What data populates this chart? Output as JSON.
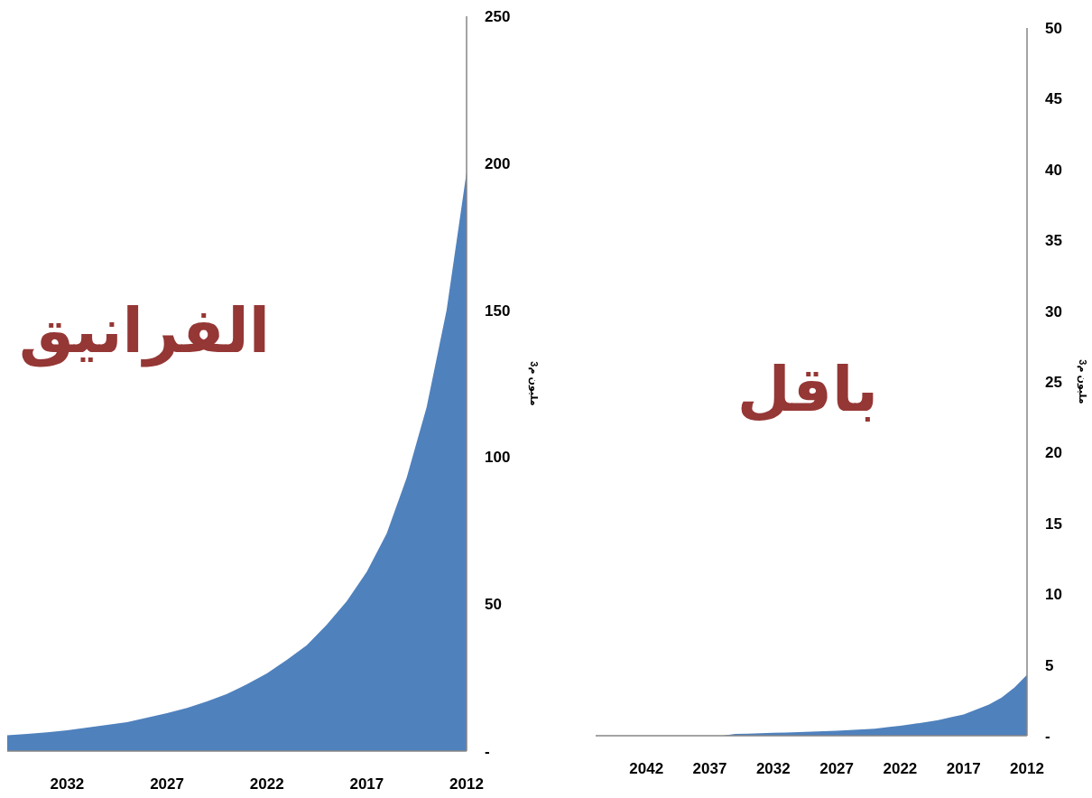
{
  "chart_data": [
    {
      "type": "area",
      "ylabel": "مليون م3",
      "annotations": [
        "الفرانيق"
      ],
      "x": [
        2012,
        2013,
        2014,
        2015,
        2016,
        2017,
        2018,
        2019,
        2020,
        2021,
        2022,
        2023,
        2024,
        2025,
        2026,
        2027,
        2028,
        2029,
        2030,
        2031,
        2032,
        2033,
        2034,
        2035
      ],
      "series": [
        {
          "color": "#4f81bd",
          "values": [
            197,
            150,
            117,
            93,
            74,
            61,
            51,
            43,
            36,
            31,
            26.4,
            22.7,
            19.4,
            16.9,
            14.7,
            12.9,
            11.4,
            9.8,
            8.9,
            8.0,
            7.1,
            6.4,
            5.8,
            5.4
          ]
        }
      ],
      "xlim": [
        2035,
        2012
      ],
      "xticks": [
        2012,
        2017,
        2022,
        2027,
        2032
      ],
      "ylim": [
        0,
        250
      ],
      "yticks": [
        {
          "value": 0,
          "label": "-"
        },
        50,
        100,
        150,
        200,
        250
      ],
      "grid": false
    },
    {
      "type": "area",
      "ylabel": "مليون م3",
      "annotations": [
        "باقل"
      ],
      "x": [
        2012,
        2013,
        2014,
        2015,
        2016,
        2017,
        2018,
        2019,
        2020,
        2021,
        2022,
        2023,
        2024,
        2025,
        2026,
        2027,
        2028,
        2029,
        2030,
        2031,
        2032,
        2033,
        2034,
        2035,
        2036,
        2037,
        2038,
        2039,
        2040,
        2041,
        2042,
        2043,
        2044,
        2045,
        2046
      ],
      "series": [
        {
          "color": "#4f81bd",
          "values": [
            4.3,
            3.4,
            2.7,
            2.2,
            1.85,
            1.5,
            1.3,
            1.1,
            0.95,
            0.83,
            0.7,
            0.6,
            0.5,
            0.45,
            0.4,
            0.35,
            0.32,
            0.28,
            0.25,
            0.22,
            0.2,
            0.18,
            0.15,
            0.12,
            0,
            0,
            0,
            0,
            0,
            0,
            0,
            0,
            0,
            0,
            0
          ]
        }
      ],
      "xlim": [
        2046,
        2012
      ],
      "xticks": [
        2012,
        2017,
        2022,
        2027,
        2032,
        2037,
        2042
      ],
      "ylim": [
        0,
        50
      ],
      "yticks": [
        {
          "value": 0,
          "label": "-"
        },
        5,
        10,
        15,
        20,
        25,
        30,
        35,
        40,
        45,
        50
      ],
      "grid": false
    }
  ]
}
